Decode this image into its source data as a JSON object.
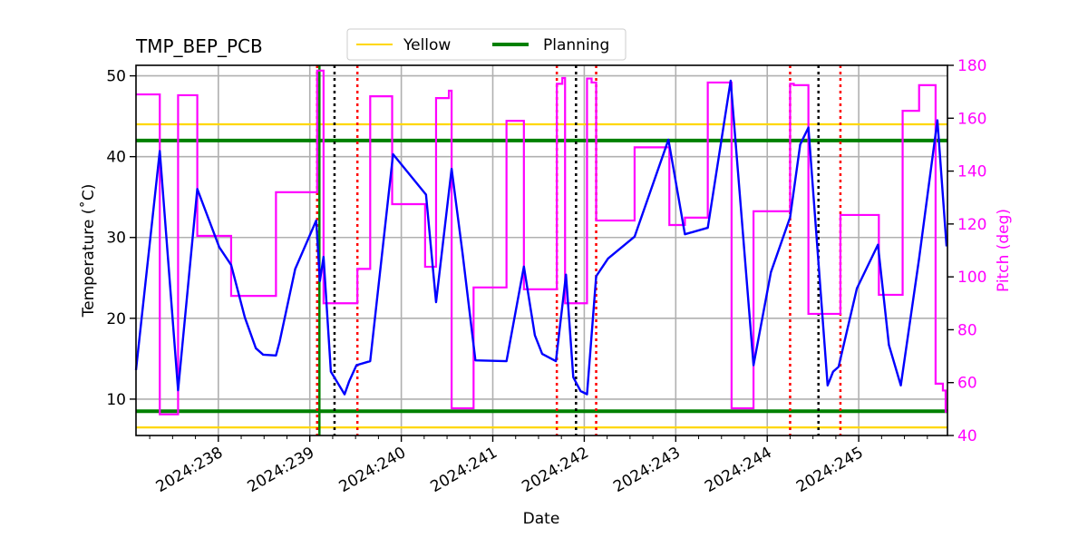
{
  "chart_data": {
    "type": "line",
    "title": "TMP_BEP_PCB",
    "xlabel": "Date",
    "ylabel": "Temperature ($^\\circ$C)",
    "ylabel_display": "Temperature (˚C)",
    "y2label": "Pitch (deg)",
    "xlim": [
      237.1,
      245.97
    ],
    "ylim": [
      5.5,
      51.3
    ],
    "y2lim": [
      40,
      180
    ],
    "grid": true,
    "x_ticks": [
      238,
      239,
      240,
      241,
      242,
      243,
      244,
      245
    ],
    "x_tick_labels": [
      "2024:238",
      "2024:239",
      "2024:240",
      "2024:241",
      "2024:242",
      "2024:243",
      "2024:244",
      "2024:245"
    ],
    "y_ticks": [
      10,
      20,
      30,
      40,
      50
    ],
    "y2_ticks": [
      40,
      60,
      80,
      100,
      120,
      140,
      160,
      180
    ],
    "legend": {
      "placement": "top-center-outside",
      "entries": [
        {
          "label": "Yellow",
          "color": "#FFD700"
        },
        {
          "label": "Planning",
          "color": "#008000"
        }
      ]
    },
    "colors": {
      "temp": "#0000FF",
      "pitch": "#FF00FF",
      "yellow": "#FFD700",
      "planning": "#008000",
      "red_lines": "#FF0000",
      "black_lines": "#000000",
      "grid": "#B0B0B0"
    },
    "hlines": [
      {
        "series": "Yellow",
        "value": 44.0
      },
      {
        "series": "Yellow",
        "value": 6.5
      },
      {
        "series": "Planning",
        "value": 42.0
      },
      {
        "series": "Planning",
        "value": 8.5
      }
    ],
    "vline_planning": [
      239.105
    ],
    "vlines_red_dotted": [
      239.08,
      239.52,
      241.7,
      242.13,
      244.25,
      244.8
    ],
    "vlines_black_dotted": [
      239.27,
      241.91,
      244.56
    ],
    "series": [
      {
        "name": "Temperature",
        "axis": "left",
        "x": [
          237.1,
          237.36,
          237.56,
          237.77,
          238.01,
          238.14,
          238.29,
          238.41,
          238.49,
          238.63,
          238.67,
          238.84,
          239.07,
          239.11,
          239.15,
          239.23,
          239.38,
          239.43,
          239.51,
          239.66,
          239.91,
          240.27,
          240.38,
          240.55,
          240.67,
          240.81,
          241.15,
          241.34,
          241.46,
          241.54,
          241.69,
          241.8,
          241.88,
          241.96,
          242.03,
          242.13,
          242.26,
          242.55,
          242.92,
          243.1,
          243.35,
          243.6,
          243.85,
          244.04,
          244.25,
          244.36,
          244.45,
          244.66,
          244.72,
          244.78,
          244.98,
          245.21,
          245.33,
          245.46,
          245.66,
          245.86,
          245.96
        ],
        "y": [
          13.6,
          40.7,
          11.1,
          36.0,
          28.8,
          26.6,
          20.1,
          16.3,
          15.5,
          15.4,
          17.1,
          26.1,
          32.1,
          24.6,
          27.6,
          13.4,
          10.6,
          12.2,
          14.2,
          14.7,
          40.3,
          35.3,
          22.0,
          38.5,
          28.0,
          14.8,
          14.7,
          26.4,
          17.9,
          15.6,
          14.7,
          25.4,
          12.7,
          11.0,
          10.6,
          25.2,
          27.4,
          30.1,
          42.1,
          30.4,
          31.2,
          49.4,
          14.2,
          25.7,
          32.5,
          41.5,
          43.6,
          11.7,
          13.4,
          14.0,
          23.7,
          29.1,
          16.7,
          11.7,
          27.4,
          44.5,
          28.9
        ]
      },
      {
        "name": "Pitch",
        "axis": "right",
        "step": "post",
        "x": [
          237.1,
          237.36,
          237.56,
          237.77,
          238.14,
          238.63,
          239.08,
          239.15,
          239.52,
          239.66,
          239.9,
          240.26,
          240.38,
          240.52,
          240.55,
          240.79,
          241.15,
          241.34,
          241.7,
          241.76,
          241.79,
          242.03,
          242.08,
          242.13,
          242.55,
          242.93,
          243.1,
          243.35,
          243.61,
          243.85,
          244.25,
          244.29,
          244.45,
          244.8,
          245.22,
          245.48,
          245.66,
          245.84,
          245.92,
          245.95,
          245.97
        ],
        "y": [
          169,
          48,
          168.7,
          115.5,
          92.8,
          132,
          178,
          90,
          103,
          168.3,
          127.5,
          103.8,
          167.6,
          170.4,
          50.3,
          96,
          159,
          95.3,
          173,
          175.2,
          90,
          175,
          173.5,
          121.3,
          149,
          119.6,
          122.4,
          173.5,
          50.3,
          124.8,
          173,
          172.5,
          86,
          123.4,
          93.2,
          162.8,
          172.5,
          59.6,
          57,
          49,
          49
        ]
      }
    ]
  }
}
